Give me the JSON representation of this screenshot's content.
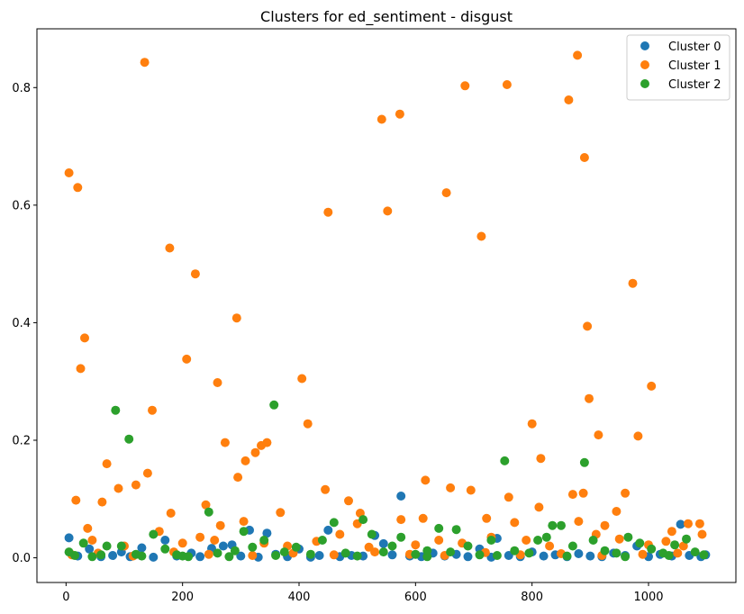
{
  "chart_data": {
    "type": "scatter",
    "title": "Clusters for ed_sentiment - disgust",
    "xlabel": "",
    "ylabel": "",
    "xlim": [
      -50,
      1150
    ],
    "ylim": [
      -0.042,
      0.9
    ],
    "x_ticks": [
      0,
      200,
      400,
      600,
      800,
      1000
    ],
    "x_tick_labels": [
      "0",
      "200",
      "400",
      "600",
      "800",
      "1000"
    ],
    "y_ticks": [
      0.0,
      0.2,
      0.4,
      0.6,
      0.8
    ],
    "y_tick_labels": [
      "0.0",
      "0.2",
      "0.4",
      "0.6",
      "0.8"
    ],
    "grid": false,
    "legend_position": "top-right",
    "series": [
      {
        "name": "Cluster 0",
        "color": "#1f77b4",
        "points": [
          [
            5,
            0.034
          ],
          [
            20,
            0.003
          ],
          [
            40,
            0.015
          ],
          [
            60,
            0.002
          ],
          [
            80,
            0.004
          ],
          [
            95,
            0.01
          ],
          [
            110,
            0.002
          ],
          [
            130,
            0.017
          ],
          [
            150,
            0.001
          ],
          [
            170,
            0.03
          ],
          [
            190,
            0.003
          ],
          [
            215,
            0.008
          ],
          [
            230,
            0.002
          ],
          [
            250,
            0.016
          ],
          [
            270,
            0.02
          ],
          [
            285,
            0.022
          ],
          [
            300,
            0.003
          ],
          [
            315,
            0.047
          ],
          [
            330,
            0.001
          ],
          [
            345,
            0.042
          ],
          [
            360,
            0.006
          ],
          [
            380,
            0.002
          ],
          [
            400,
            0.015
          ],
          [
            420,
            0.001
          ],
          [
            435,
            0.004
          ],
          [
            450,
            0.047
          ],
          [
            470,
            0.002
          ],
          [
            490,
            0.004
          ],
          [
            510,
            0.003
          ],
          [
            530,
            0.038
          ],
          [
            545,
            0.024
          ],
          [
            560,
            0.005
          ],
          [
            575,
            0.105
          ],
          [
            590,
            0.003
          ],
          [
            610,
            0.002
          ],
          [
            630,
            0.008
          ],
          [
            650,
            0.003
          ],
          [
            670,
            0.006
          ],
          [
            690,
            0.002
          ],
          [
            710,
            0.015
          ],
          [
            730,
            0.001
          ],
          [
            740,
            0.033
          ],
          [
            760,
            0.004
          ],
          [
            780,
            0.002
          ],
          [
            800,
            0.01
          ],
          [
            820,
            0.003
          ],
          [
            840,
            0.005
          ],
          [
            860,
            0.002
          ],
          [
            880,
            0.007
          ],
          [
            900,
            0.003
          ],
          [
            920,
            0.002
          ],
          [
            940,
            0.008
          ],
          [
            960,
            0.004
          ],
          [
            980,
            0.02
          ],
          [
            1000,
            0.002
          ],
          [
            1020,
            0.006
          ],
          [
            1040,
            0.003
          ],
          [
            1055,
            0.057
          ],
          [
            1070,
            0.004
          ],
          [
            1090,
            0.002
          ],
          [
            1098,
            0.005
          ]
        ]
      },
      {
        "name": "Cluster 1",
        "color": "#ff7f0e",
        "points": [
          [
            5,
            0.655
          ],
          [
            20,
            0.63
          ],
          [
            25,
            0.322
          ],
          [
            32,
            0.374
          ],
          [
            17,
            0.098
          ],
          [
            37,
            0.05
          ],
          [
            62,
            0.095
          ],
          [
            70,
            0.16
          ],
          [
            90,
            0.118
          ],
          [
            120,
            0.124
          ],
          [
            135,
            0.843
          ],
          [
            140,
            0.144
          ],
          [
            148,
            0.251
          ],
          [
            178,
            0.527
          ],
          [
            180,
            0.076
          ],
          [
            207,
            0.338
          ],
          [
            222,
            0.483
          ],
          [
            240,
            0.09
          ],
          [
            260,
            0.298
          ],
          [
            265,
            0.055
          ],
          [
            273,
            0.196
          ],
          [
            293,
            0.408
          ],
          [
            295,
            0.137
          ],
          [
            305,
            0.062
          ],
          [
            308,
            0.165
          ],
          [
            325,
            0.179
          ],
          [
            335,
            0.191
          ],
          [
            345,
            0.196
          ],
          [
            368,
            0.077
          ],
          [
            405,
            0.305
          ],
          [
            415,
            0.228
          ],
          [
            445,
            0.116
          ],
          [
            450,
            0.588
          ],
          [
            485,
            0.097
          ],
          [
            500,
            0.058
          ],
          [
            505,
            0.076
          ],
          [
            542,
            0.746
          ],
          [
            552,
            0.59
          ],
          [
            573,
            0.755
          ],
          [
            575,
            0.065
          ],
          [
            613,
            0.067
          ],
          [
            617,
            0.132
          ],
          [
            653,
            0.621
          ],
          [
            660,
            0.119
          ],
          [
            685,
            0.803
          ],
          [
            695,
            0.115
          ],
          [
            713,
            0.547
          ],
          [
            722,
            0.067
          ],
          [
            757,
            0.805
          ],
          [
            760,
            0.103
          ],
          [
            770,
            0.06
          ],
          [
            800,
            0.228
          ],
          [
            812,
            0.086
          ],
          [
            815,
            0.169
          ],
          [
            863,
            0.779
          ],
          [
            870,
            0.108
          ],
          [
            878,
            0.855
          ],
          [
            880,
            0.062
          ],
          [
            888,
            0.11
          ],
          [
            890,
            0.681
          ],
          [
            895,
            0.394
          ],
          [
            898,
            0.271
          ],
          [
            914,
            0.209
          ],
          [
            925,
            0.055
          ],
          [
            945,
            0.079
          ],
          [
            960,
            0.11
          ],
          [
            973,
            0.467
          ],
          [
            982,
            0.207
          ],
          [
            1005,
            0.292
          ],
          [
            1040,
            0.045
          ],
          [
            1068,
            0.058
          ],
          [
            1088,
            0.058
          ],
          [
            1092,
            0.04
          ],
          [
            45,
            0.03
          ],
          [
            100,
            0.02
          ],
          [
            160,
            0.045
          ],
          [
            200,
            0.025
          ],
          [
            230,
            0.035
          ],
          [
            255,
            0.03
          ],
          [
            340,
            0.025
          ],
          [
            380,
            0.02
          ],
          [
            430,
            0.028
          ],
          [
            470,
            0.04
          ],
          [
            520,
            0.018
          ],
          [
            600,
            0.022
          ],
          [
            640,
            0.03
          ],
          [
            680,
            0.025
          ],
          [
            730,
            0.035
          ],
          [
            790,
            0.03
          ],
          [
            830,
            0.02
          ],
          [
            910,
            0.04
          ],
          [
            950,
            0.032
          ],
          [
            1000,
            0.022
          ],
          [
            1030,
            0.028
          ],
          [
            1060,
            0.02
          ],
          [
            10,
            0.005
          ],
          [
            55,
            0.008
          ],
          [
            115,
            0.003
          ],
          [
            185,
            0.01
          ],
          [
            245,
            0.006
          ],
          [
            320,
            0.004
          ],
          [
            390,
            0.008
          ],
          [
            460,
            0.005
          ],
          [
            530,
            0.01
          ],
          [
            590,
            0.006
          ],
          [
            650,
            0.004
          ],
          [
            720,
            0.009
          ],
          [
            780,
            0.005
          ],
          [
            850,
            0.007
          ],
          [
            920,
            0.004
          ],
          [
            990,
            0.006
          ],
          [
            1050,
            0.008
          ]
        ]
      },
      {
        "name": "Cluster 2",
        "color": "#2ca02c",
        "points": [
          [
            5,
            0.01
          ],
          [
            30,
            0.025
          ],
          [
            60,
            0.005
          ],
          [
            70,
            0.02
          ],
          [
            85,
            0.251
          ],
          [
            95,
            0.02
          ],
          [
            108,
            0.202
          ],
          [
            130,
            0.003
          ],
          [
            150,
            0.04
          ],
          [
            170,
            0.015
          ],
          [
            190,
            0.005
          ],
          [
            210,
            0.002
          ],
          [
            245,
            0.078
          ],
          [
            260,
            0.008
          ],
          [
            290,
            0.012
          ],
          [
            305,
            0.045
          ],
          [
            320,
            0.018
          ],
          [
            340,
            0.03
          ],
          [
            357,
            0.26
          ],
          [
            375,
            0.01
          ],
          [
            395,
            0.018
          ],
          [
            420,
            0.006
          ],
          [
            440,
            0.03
          ],
          [
            460,
            0.06
          ],
          [
            480,
            0.008
          ],
          [
            510,
            0.065
          ],
          [
            525,
            0.04
          ],
          [
            545,
            0.01
          ],
          [
            560,
            0.02
          ],
          [
            575,
            0.035
          ],
          [
            600,
            0.006
          ],
          [
            620,
            0.012
          ],
          [
            640,
            0.05
          ],
          [
            660,
            0.01
          ],
          [
            670,
            0.048
          ],
          [
            690,
            0.02
          ],
          [
            710,
            0.005
          ],
          [
            730,
            0.03
          ],
          [
            753,
            0.165
          ],
          [
            770,
            0.012
          ],
          [
            795,
            0.008
          ],
          [
            810,
            0.03
          ],
          [
            825,
            0.035
          ],
          [
            835,
            0.055
          ],
          [
            850,
            0.055
          ],
          [
            870,
            0.02
          ],
          [
            890,
            0.162
          ],
          [
            905,
            0.03
          ],
          [
            925,
            0.012
          ],
          [
            945,
            0.008
          ],
          [
            965,
            0.035
          ],
          [
            985,
            0.025
          ],
          [
            1005,
            0.015
          ],
          [
            1025,
            0.008
          ],
          [
            1045,
            0.022
          ],
          [
            1065,
            0.032
          ],
          [
            1080,
            0.01
          ],
          [
            1095,
            0.005
          ],
          [
            15,
            0.004
          ],
          [
            45,
            0.002
          ],
          [
            120,
            0.006
          ],
          [
            200,
            0.003
          ],
          [
            280,
            0.002
          ],
          [
            360,
            0.004
          ],
          [
            500,
            0.003
          ],
          [
            620,
            0.002
          ],
          [
            740,
            0.004
          ],
          [
            860,
            0.003
          ],
          [
            960,
            0.002
          ],
          [
            1035,
            0.004
          ]
        ]
      }
    ]
  }
}
